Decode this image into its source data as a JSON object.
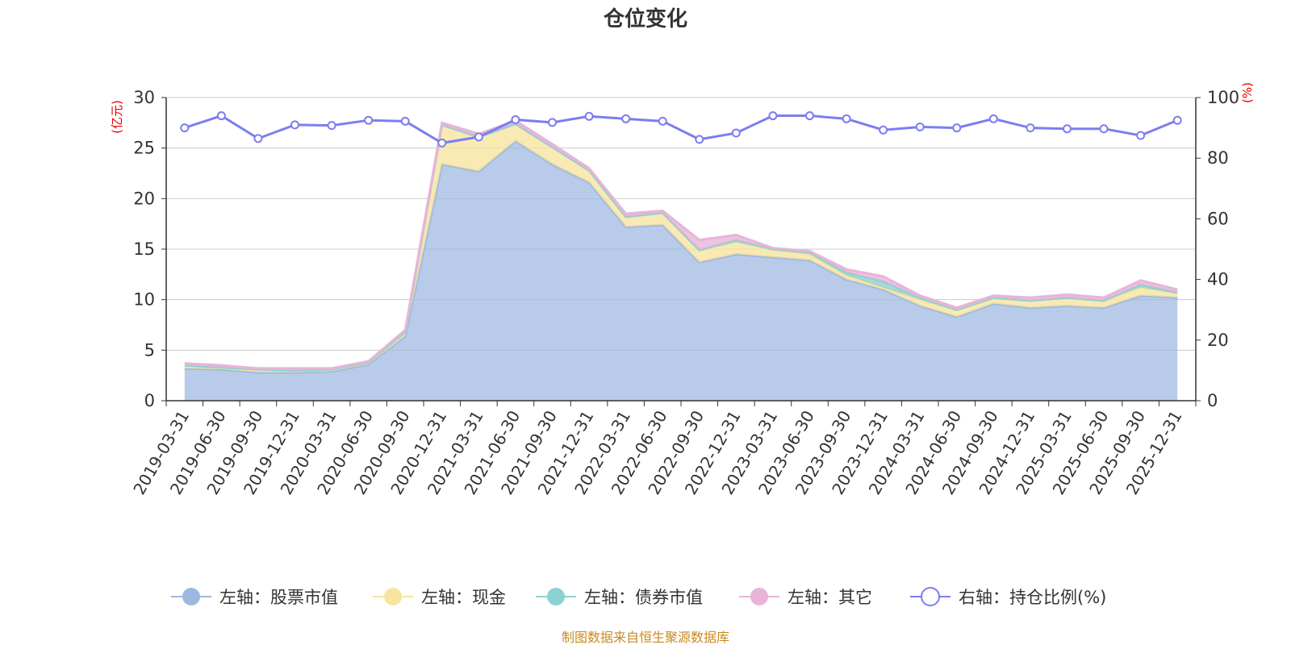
{
  "chart_data": {
    "type": "area",
    "title": "仓位变化",
    "left_axis_unit": "(亿元)",
    "right_axis_unit": "(%)",
    "ylim_left": [
      0,
      30
    ],
    "ylim_right": [
      0,
      100
    ],
    "left_ticks": [
      "0",
      "5",
      "10",
      "15",
      "20",
      "25",
      "30"
    ],
    "right_ticks": [
      "0",
      "20",
      "40",
      "60",
      "80",
      "100"
    ],
    "categories": [
      "2019-03-31",
      "2019-06-30",
      "2019-09-30",
      "2019-12-31",
      "2020-03-31",
      "2020-06-30",
      "2020-09-30",
      "2020-12-31",
      "2021-03-31",
      "2021-06-30",
      "2021-09-30",
      "2021-12-31",
      "2022-03-31",
      "2022-06-30",
      "2022-09-30",
      "2022-12-31",
      "2023-03-31",
      "2023-06-30",
      "2023-09-30",
      "2023-12-31",
      "2024-03-31",
      "2024-06-30",
      "2024-09-30",
      "2024-12-31",
      "2025-03-31",
      "2025-06-30",
      "2025-09-30",
      "2025-12-31"
    ],
    "series": [
      {
        "name": "左轴：股票市值",
        "axis": "left",
        "stack": true,
        "color": "#9db7e0",
        "values": [
          3.2,
          3.1,
          2.8,
          2.8,
          2.9,
          3.6,
          6.4,
          23.4,
          22.7,
          25.7,
          23.4,
          21.6,
          17.2,
          17.4,
          13.7,
          14.5,
          14.2,
          13.9,
          12.0,
          11.0,
          9.4,
          8.3,
          9.6,
          9.2,
          9.4,
          9.2,
          10.4,
          10.2
        ]
      },
      {
        "name": "左轴：现金",
        "axis": "left",
        "stack": true,
        "color": "#f7e4a0",
        "values": [
          0.3,
          0.2,
          0.3,
          0.2,
          0.2,
          0.2,
          0.4,
          3.9,
          3.4,
          1.7,
          1.7,
          1.2,
          1.0,
          1.2,
          1.2,
          1.2,
          0.7,
          0.6,
          0.4,
          0.2,
          0.6,
          0.6,
          0.5,
          0.7,
          0.8,
          0.7,
          0.8,
          0.4
        ]
      },
      {
        "name": "左轴：债券市值",
        "axis": "left",
        "stack": true,
        "color": "#8dd1d1",
        "values": [
          0,
          0,
          0,
          0,
          0,
          0,
          0,
          0,
          0,
          0,
          0,
          0,
          0,
          0,
          0,
          0.2,
          0.1,
          0.2,
          0.3,
          0.6,
          0.2,
          0.1,
          0.1,
          0,
          0,
          0,
          0.3,
          0.1
        ]
      },
      {
        "name": "左轴：其它",
        "axis": "left",
        "stack": true,
        "color": "#e8b4d8",
        "values": [
          0.2,
          0.2,
          0.1,
          0.2,
          0.1,
          0.1,
          0.2,
          0.2,
          0.3,
          0.3,
          0.3,
          0.2,
          0.3,
          0.2,
          1.0,
          0.5,
          0.1,
          0.1,
          0.3,
          0.5,
          0.2,
          0.2,
          0.2,
          0.3,
          0.3,
          0.3,
          0.4,
          0.3
        ]
      },
      {
        "name": "右轴：持仓比例(%)",
        "axis": "right",
        "stack": false,
        "color": "#7b7ef0",
        "values": [
          90,
          94,
          86.5,
          91,
          90.8,
          92.5,
          92.2,
          85,
          87,
          92.7,
          91.8,
          93.8,
          93,
          92.2,
          86.2,
          88.3,
          94,
          94,
          93,
          89.3,
          90.3,
          90,
          93,
          90,
          89.7,
          89.7,
          87.5,
          92.5
        ]
      }
    ]
  },
  "legend": {
    "items": [
      "左轴：股票市值",
      "左轴：现金",
      "左轴：债券市值",
      "左轴：其它",
      "右轴：持仓比例(%)"
    ]
  },
  "source_note": "制图数据来自恒生聚源数据库"
}
